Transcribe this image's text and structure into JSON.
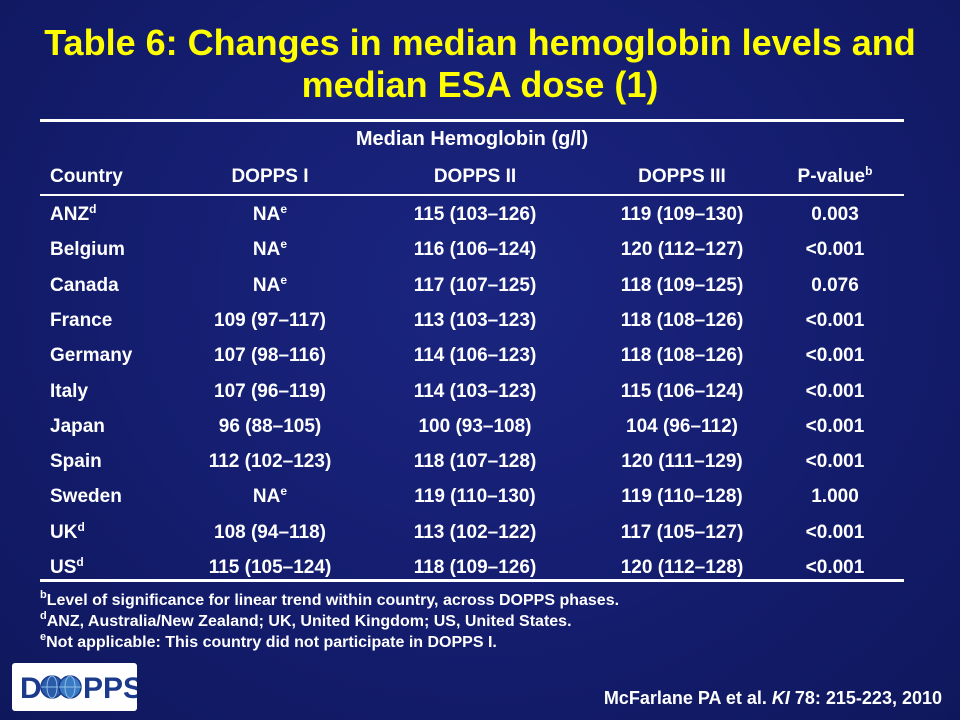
{
  "title_line1": "Table 6:  Changes in median hemoglobin levels and",
  "title_line2": "median ESA dose (1)",
  "subheading": "Median Hemoglobin (g/l)",
  "columns": [
    "Country",
    "DOPPS I",
    "DOPPS II",
    "DOPPS III",
    "P-value"
  ],
  "pvalue_sup": "b",
  "rows": [
    {
      "country": "ANZ",
      "sup": "d",
      "d1": "NA",
      "d1_sup": "e",
      "d2": "115 (103–126)",
      "d3": "119 (109–130)",
      "p": "0.003"
    },
    {
      "country": "Belgium",
      "sup": "",
      "d1": "NA",
      "d1_sup": "e",
      "d2": "116 (106–124)",
      "d3": "120 (112–127)",
      "p": "<0.001"
    },
    {
      "country": "Canada",
      "sup": "",
      "d1": "NA",
      "d1_sup": "e",
      "d2": "117 (107–125)",
      "d3": "118 (109–125)",
      "p": "0.076"
    },
    {
      "country": "France",
      "sup": "",
      "d1": "109 (97–117)",
      "d1_sup": "",
      "d2": "113 (103–123)",
      "d3": "118 (108–126)",
      "p": "<0.001"
    },
    {
      "country": "Germany",
      "sup": "",
      "d1": "107 (98–116)",
      "d1_sup": "",
      "d2": "114 (106–123)",
      "d3": "118 (108–126)",
      "p": "<0.001"
    },
    {
      "country": "Italy",
      "sup": "",
      "d1": "107 (96–119)",
      "d1_sup": "",
      "d2": "114 (103–123)",
      "d3": "115 (106–124)",
      "p": "<0.001"
    },
    {
      "country": "Japan",
      "sup": "",
      "d1": "96 (88–105)",
      "d1_sup": "",
      "d2": "100 (93–108)",
      "d3": "104 (96–112)",
      "p": "<0.001"
    },
    {
      "country": "Spain",
      "sup": "",
      "d1": "112 (102–123)",
      "d1_sup": "",
      "d2": "118 (107–128)",
      "d3": "120 (111–129)",
      "p": "<0.001"
    },
    {
      "country": "Sweden",
      "sup": "",
      "d1": "NA",
      "d1_sup": "e",
      "d2": "119 (110–130)",
      "d3": "119 (110–128)",
      "p": "1.000"
    },
    {
      "country": "UK",
      "sup": "d",
      "d1": "108 (94–118)",
      "d1_sup": "",
      "d2": "113 (102–122)",
      "d3": "117 (105–127)",
      "p": "<0.001"
    },
    {
      "country": "US",
      "sup": "d",
      "d1": "115 (105–124)",
      "d1_sup": "",
      "d2": "118 (109–126)",
      "d3": "120 (112–128)",
      "p": "<0.001"
    }
  ],
  "footnotes": [
    {
      "mark": "b",
      "text": "Level of significance for linear trend within country, across DOPPS phases."
    },
    {
      "mark": "d",
      "text": "ANZ, Australia/New Zealand; UK, United Kingdom; US, United States."
    },
    {
      "mark": "e",
      "text": "Not applicable: This country did not participate in DOPPS I."
    }
  ],
  "logo_text": "DOPPS",
  "citation_author": "McFarlane PA et al. ",
  "citation_journal": "KI",
  "citation_rest": " 78: 215-223, 2010",
  "colors": {
    "title": "#ffff00",
    "background": "#141d6e",
    "text": "#ffffff",
    "logo_text": "#1b3a8c"
  }
}
